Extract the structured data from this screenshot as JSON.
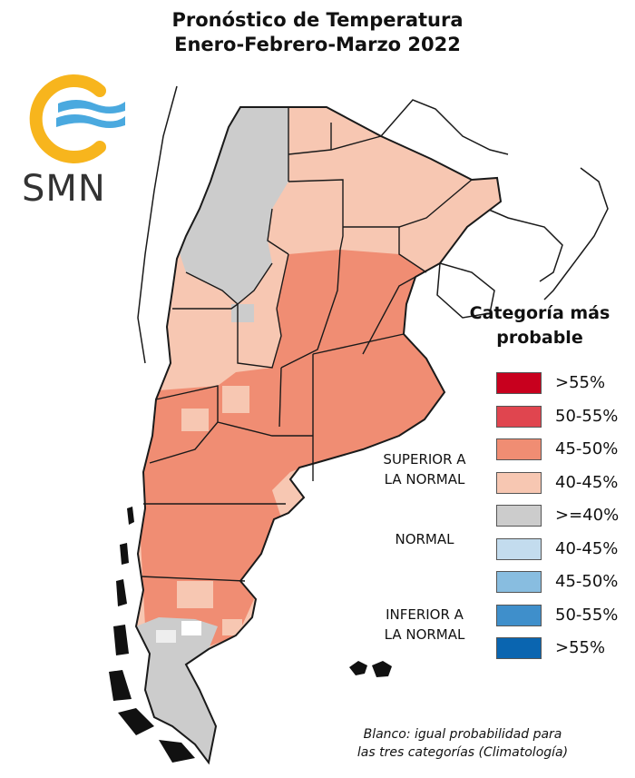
{
  "title": {
    "line1": "Pronóstico de Temperatura",
    "line2": "Enero-Febrero-Marzo 2022"
  },
  "logo": {
    "text": "SMN",
    "ring_color": "#f7b51d",
    "wave_color": "#4aa9df"
  },
  "legend": {
    "title_line1": "Categoría más",
    "title_line2": "probable",
    "items": [
      {
        "label": ">55%",
        "color": "#c8001e"
      },
      {
        "label": "50-55%",
        "color": "#e0454f"
      },
      {
        "label": "45-50%",
        "color": "#f08d73"
      },
      {
        "label": "40-45%",
        "color": "#f7c7b2"
      },
      {
        "label": ">=40%",
        "color": "#cccccc"
      },
      {
        "label": "40-45%",
        "color": "#c3dcee"
      },
      {
        "label": "45-50%",
        "color": "#88bde0"
      },
      {
        "label": "50-55%",
        "color": "#3f8fcb"
      },
      {
        "label": ">55%",
        "color": "#0a65b0"
      }
    ],
    "groups": {
      "superior_line1": "SUPERIOR A",
      "superior_line2": "LA NORMAL",
      "normal": "NORMAL",
      "inferior_line1": "INFERIOR A",
      "inferior_line2": "LA NORMAL"
    }
  },
  "note": {
    "line1": "Blanco: igual probabilidad para",
    "line2": "las tres categorías (Climatología)"
  },
  "map": {
    "colors": {
      "normal": "#cccccc",
      "superior_40_45": "#f7c7b2",
      "superior_45_50": "#f08d73",
      "border": "#1a1a1a"
    }
  }
}
